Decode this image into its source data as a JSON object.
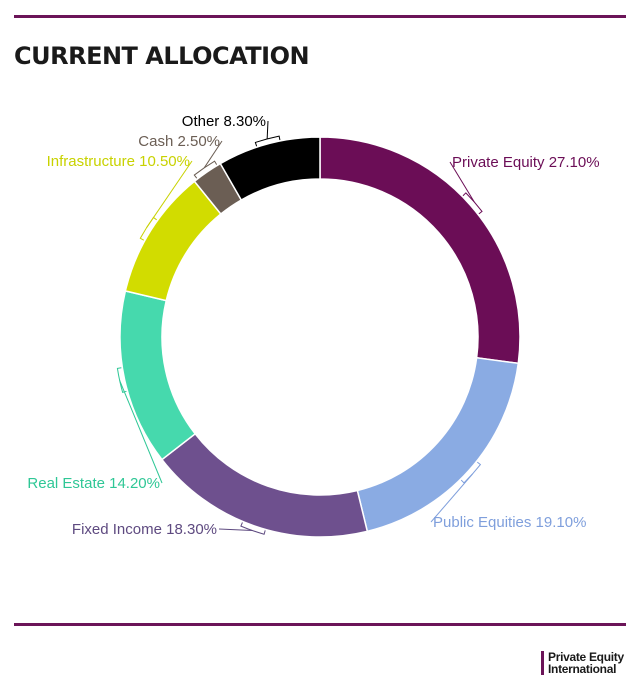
{
  "title": "CURRENT ALLOCATION",
  "logo": {
    "line1": "Private Equity",
    "line2": "International"
  },
  "chart_data": {
    "type": "pie",
    "variant": "donut",
    "slices": [
      {
        "label": "Private Equity 27.10%",
        "name": "Private Equity",
        "value": 27.1,
        "color": "#6b0d56",
        "label_color": "#6b0d56"
      },
      {
        "label": "Public Equities 19.10%",
        "name": "Public Equities",
        "value": 19.1,
        "color": "#8aabe3",
        "label_color": "#7f9fdc"
      },
      {
        "label": "Fixed Income 18.30%",
        "name": "Fixed Income",
        "value": 18.3,
        "color": "#6e508e",
        "label_color": "#5e4a80"
      },
      {
        "label": "Real Estate 14.20%",
        "name": "Real Estate",
        "value": 14.2,
        "color": "#46d9ad",
        "label_color": "#2fc796"
      },
      {
        "label": "Infrastructure 10.50%",
        "name": "Infrastructure",
        "value": 10.5,
        "color": "#d2dc00",
        "label_color": "#c8d200"
      },
      {
        "label": "Cash 2.50%",
        "name": "Cash",
        "value": 2.5,
        "color": "#6b5e54",
        "label_color": "#6b5e54"
      },
      {
        "label": "Other 8.30%",
        "name": "Other",
        "value": 8.3,
        "color": "#000000",
        "label_color": "#000000"
      }
    ]
  }
}
